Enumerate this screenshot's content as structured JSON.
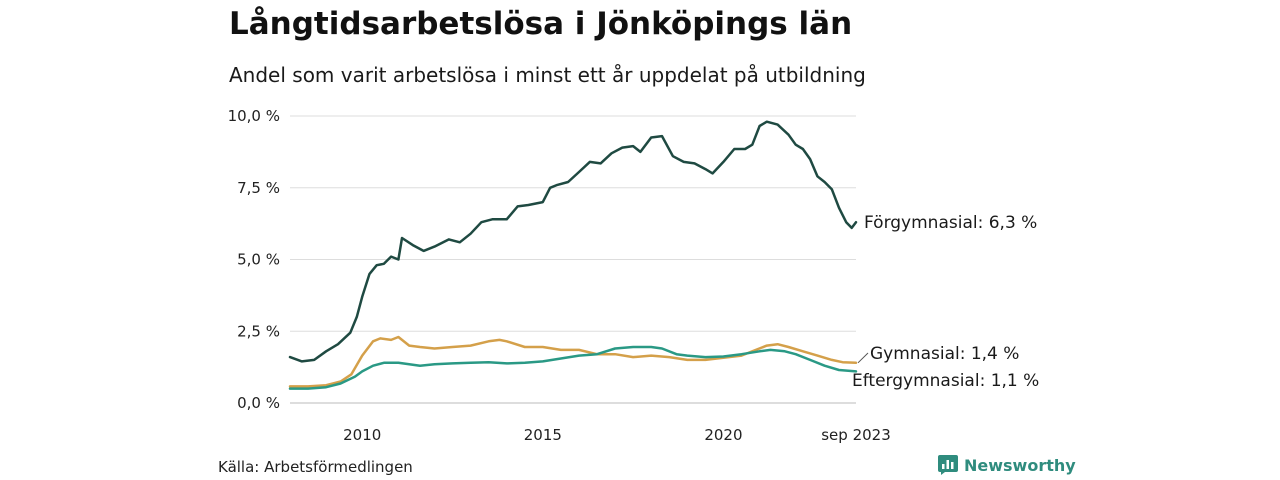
{
  "header": {
    "title": "Långtidsarbetslösa i Jönköpings län",
    "subtitle": "Andel som varit arbetslösa i minst ett år uppdelat på utbildning"
  },
  "footer": {
    "source": "Källa: Arbetsförmedlingen",
    "brand": "Newsworthy",
    "brand_icon": "bar-chart-icon",
    "brand_color": "#2f8c7e"
  },
  "chart_data": {
    "type": "line",
    "title": "Långtidsarbetslösa i Jönköpings län",
    "subtitle": "Andel som varit arbetslösa i minst ett år uppdelat på utbildning",
    "xlabel": "",
    "ylabel": "",
    "x_start": 2008.0,
    "x_end": 2023.67,
    "x_ticks": [
      {
        "value": 2010,
        "label": "2010"
      },
      {
        "value": 2015,
        "label": "2015"
      },
      {
        "value": 2020,
        "label": "2020"
      },
      {
        "value": 2023.67,
        "label": "sep 2023"
      }
    ],
    "ylim": [
      0,
      10
    ],
    "y_ticks": [
      {
        "value": 0,
        "label": "0,0 %"
      },
      {
        "value": 2.5,
        "label": "2,5 %"
      },
      {
        "value": 5,
        "label": "5,0 %"
      },
      {
        "value": 7.5,
        "label": "7,5 %"
      },
      {
        "value": 10,
        "label": "10,0 %"
      }
    ],
    "grid": true,
    "series": [
      {
        "name": "Förgymnasial",
        "end_label": "Förgymnasial: 6,3 %",
        "color": "#1f4a42",
        "points": [
          [
            2008.0,
            1.6
          ],
          [
            2008.33,
            1.45
          ],
          [
            2008.67,
            1.5
          ],
          [
            2009.0,
            1.8
          ],
          [
            2009.33,
            2.05
          ],
          [
            2009.67,
            2.45
          ],
          [
            2009.85,
            3.0
          ],
          [
            2010.0,
            3.7
          ],
          [
            2010.2,
            4.5
          ],
          [
            2010.4,
            4.8
          ],
          [
            2010.6,
            4.85
          ],
          [
            2010.8,
            5.1
          ],
          [
            2011.0,
            5.0
          ],
          [
            2011.1,
            5.75
          ],
          [
            2011.4,
            5.5
          ],
          [
            2011.7,
            5.3
          ],
          [
            2012.0,
            5.45
          ],
          [
            2012.4,
            5.7
          ],
          [
            2012.7,
            5.6
          ],
          [
            2013.0,
            5.9
          ],
          [
            2013.3,
            6.3
          ],
          [
            2013.6,
            6.4
          ],
          [
            2014.0,
            6.4
          ],
          [
            2014.3,
            6.85
          ],
          [
            2014.6,
            6.9
          ],
          [
            2015.0,
            7.0
          ],
          [
            2015.2,
            7.5
          ],
          [
            2015.4,
            7.6
          ],
          [
            2015.7,
            7.7
          ],
          [
            2016.0,
            8.05
          ],
          [
            2016.3,
            8.4
          ],
          [
            2016.6,
            8.35
          ],
          [
            2016.9,
            8.7
          ],
          [
            2017.2,
            8.9
          ],
          [
            2017.5,
            8.95
          ],
          [
            2017.7,
            8.75
          ],
          [
            2018.0,
            9.25
          ],
          [
            2018.3,
            9.3
          ],
          [
            2018.6,
            8.6
          ],
          [
            2018.9,
            8.4
          ],
          [
            2019.2,
            8.35
          ],
          [
            2019.5,
            8.15
          ],
          [
            2019.7,
            8.0
          ],
          [
            2020.0,
            8.4
          ],
          [
            2020.3,
            8.85
          ],
          [
            2020.6,
            8.85
          ],
          [
            2020.8,
            9.0
          ],
          [
            2021.0,
            9.65
          ],
          [
            2021.2,
            9.8
          ],
          [
            2021.5,
            9.7
          ],
          [
            2021.8,
            9.35
          ],
          [
            2022.0,
            9.0
          ],
          [
            2022.2,
            8.85
          ],
          [
            2022.4,
            8.5
          ],
          [
            2022.6,
            7.9
          ],
          [
            2022.8,
            7.7
          ],
          [
            2023.0,
            7.45
          ],
          [
            2023.2,
            6.8
          ],
          [
            2023.4,
            6.3
          ],
          [
            2023.55,
            6.1
          ],
          [
            2023.67,
            6.3
          ]
        ]
      },
      {
        "name": "Gymnasial",
        "end_label": "Gymnasial: 1,4 %",
        "color": "#d4a04a",
        "points": [
          [
            2008.0,
            0.58
          ],
          [
            2008.5,
            0.58
          ],
          [
            2009.0,
            0.62
          ],
          [
            2009.4,
            0.75
          ],
          [
            2009.7,
            1.0
          ],
          [
            2010.0,
            1.65
          ],
          [
            2010.3,
            2.15
          ],
          [
            2010.5,
            2.25
          ],
          [
            2010.8,
            2.2
          ],
          [
            2011.0,
            2.3
          ],
          [
            2011.3,
            2.0
          ],
          [
            2011.6,
            1.95
          ],
          [
            2012.0,
            1.9
          ],
          [
            2012.5,
            1.95
          ],
          [
            2013.0,
            2.0
          ],
          [
            2013.5,
            2.15
          ],
          [
            2013.8,
            2.2
          ],
          [
            2014.0,
            2.15
          ],
          [
            2014.5,
            1.95
          ],
          [
            2015.0,
            1.95
          ],
          [
            2015.5,
            1.85
          ],
          [
            2016.0,
            1.85
          ],
          [
            2016.5,
            1.7
          ],
          [
            2017.0,
            1.7
          ],
          [
            2017.5,
            1.6
          ],
          [
            2018.0,
            1.65
          ],
          [
            2018.5,
            1.6
          ],
          [
            2019.0,
            1.5
          ],
          [
            2019.5,
            1.5
          ],
          [
            2020.0,
            1.58
          ],
          [
            2020.5,
            1.65
          ],
          [
            2020.8,
            1.8
          ],
          [
            2021.2,
            2.0
          ],
          [
            2021.5,
            2.05
          ],
          [
            2021.8,
            1.95
          ],
          [
            2022.2,
            1.8
          ],
          [
            2022.6,
            1.65
          ],
          [
            2023.0,
            1.5
          ],
          [
            2023.3,
            1.42
          ],
          [
            2023.67,
            1.4
          ]
        ]
      },
      {
        "name": "Eftergymnasial",
        "end_label": "Eftergymnasial: 1,1 %",
        "color": "#2a9985",
        "points": [
          [
            2008.0,
            0.5
          ],
          [
            2008.5,
            0.5
          ],
          [
            2009.0,
            0.55
          ],
          [
            2009.4,
            0.68
          ],
          [
            2009.8,
            0.92
          ],
          [
            2010.0,
            1.1
          ],
          [
            2010.3,
            1.3
          ],
          [
            2010.6,
            1.4
          ],
          [
            2011.0,
            1.4
          ],
          [
            2011.3,
            1.35
          ],
          [
            2011.6,
            1.3
          ],
          [
            2012.0,
            1.35
          ],
          [
            2012.5,
            1.38
          ],
          [
            2013.0,
            1.4
          ],
          [
            2013.5,
            1.42
          ],
          [
            2014.0,
            1.38
          ],
          [
            2014.5,
            1.4
          ],
          [
            2015.0,
            1.45
          ],
          [
            2015.5,
            1.55
          ],
          [
            2016.0,
            1.65
          ],
          [
            2016.5,
            1.7
          ],
          [
            2017.0,
            1.9
          ],
          [
            2017.5,
            1.95
          ],
          [
            2018.0,
            1.95
          ],
          [
            2018.3,
            1.9
          ],
          [
            2018.7,
            1.7
          ],
          [
            2019.0,
            1.65
          ],
          [
            2019.5,
            1.6
          ],
          [
            2020.0,
            1.62
          ],
          [
            2020.5,
            1.7
          ],
          [
            2021.0,
            1.8
          ],
          [
            2021.3,
            1.85
          ],
          [
            2021.7,
            1.8
          ],
          [
            2022.0,
            1.7
          ],
          [
            2022.4,
            1.5
          ],
          [
            2022.8,
            1.3
          ],
          [
            2023.2,
            1.15
          ],
          [
            2023.67,
            1.1
          ]
        ]
      }
    ]
  }
}
